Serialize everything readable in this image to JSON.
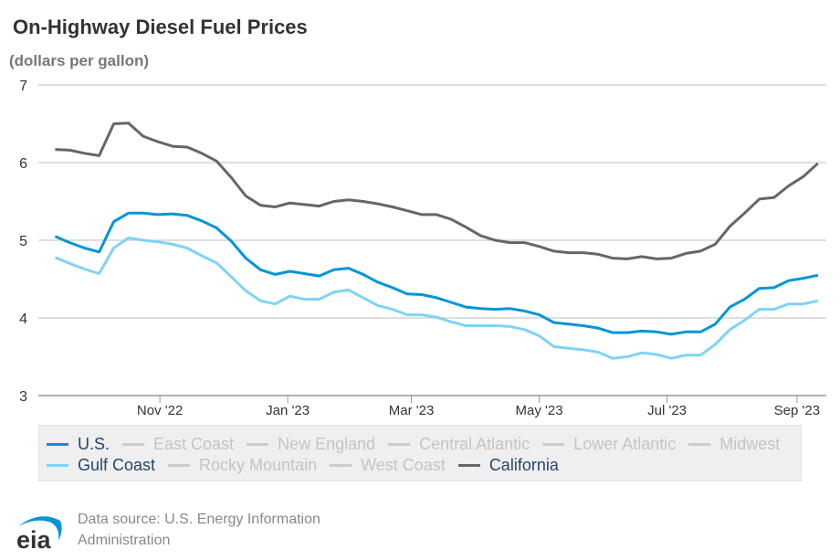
{
  "title": "On-Highway Diesel Fuel Prices",
  "subtitle": "(dollars per gallon)",
  "source": "Data source: U.S. Energy Information Administration",
  "logo_text": "eia",
  "chart_data": {
    "type": "line",
    "title": "On-Highway Diesel Fuel Prices",
    "ylabel": "(dollars per gallon)",
    "ylim": [
      3,
      7
    ],
    "yticks": [
      "3",
      "4",
      "5",
      "6",
      "7"
    ],
    "xlim": [
      "2022-09-04",
      "2023-09-15"
    ],
    "xticks": [
      {
        "date": "2022-11-01",
        "label": "Nov '22"
      },
      {
        "date": "2023-01-01",
        "label": "Jan '23"
      },
      {
        "date": "2023-03-01",
        "label": "Mar '23"
      },
      {
        "date": "2023-05-01",
        "label": "May '23"
      },
      {
        "date": "2023-07-01",
        "label": "Jul '23"
      },
      {
        "date": "2023-09-01",
        "label": "Sep '23"
      }
    ],
    "grid": true,
    "legend_placement": "bottom",
    "x": [
      "2022-09-12",
      "2022-09-19",
      "2022-09-26",
      "2022-10-03",
      "2022-10-10",
      "2022-10-17",
      "2022-10-24",
      "2022-10-31",
      "2022-11-07",
      "2022-11-14",
      "2022-11-21",
      "2022-11-28",
      "2022-12-05",
      "2022-12-12",
      "2022-12-19",
      "2022-12-26",
      "2023-01-02",
      "2023-01-09",
      "2023-01-16",
      "2023-01-23",
      "2023-01-30",
      "2023-02-06",
      "2023-02-13",
      "2023-02-20",
      "2023-02-27",
      "2023-03-06",
      "2023-03-13",
      "2023-03-20",
      "2023-03-27",
      "2023-04-03",
      "2023-04-10",
      "2023-04-17",
      "2023-04-24",
      "2023-05-01",
      "2023-05-08",
      "2023-05-15",
      "2023-05-22",
      "2023-05-29",
      "2023-06-05",
      "2023-06-12",
      "2023-06-19",
      "2023-06-26",
      "2023-07-03",
      "2023-07-10",
      "2023-07-17",
      "2023-07-24",
      "2023-07-31",
      "2023-08-07",
      "2023-08-14",
      "2023-08-21",
      "2023-08-28",
      "2023-09-04",
      "2023-09-11"
    ],
    "series": [
      {
        "name": "California",
        "color": "#666666",
        "values": [
          6.17,
          6.16,
          6.12,
          6.09,
          6.5,
          6.51,
          6.34,
          6.27,
          6.21,
          6.2,
          6.12,
          6.02,
          5.81,
          5.57,
          5.45,
          5.43,
          5.48,
          5.46,
          5.44,
          5.5,
          5.52,
          5.5,
          5.47,
          5.43,
          5.38,
          5.33,
          5.33,
          5.27,
          5.17,
          5.06,
          5.0,
          4.97,
          4.97,
          4.92,
          4.86,
          4.84,
          4.84,
          4.82,
          4.77,
          4.76,
          4.79,
          4.76,
          4.77,
          4.83,
          4.86,
          4.95,
          5.18,
          5.35,
          5.53,
          5.55,
          5.7,
          5.82,
          5.99
        ]
      },
      {
        "name": "Gulf Coast",
        "color": "#7fd3f7",
        "values": [
          4.78,
          4.7,
          4.63,
          4.57,
          4.9,
          5.03,
          5.0,
          4.98,
          4.95,
          4.9,
          4.8,
          4.71,
          4.53,
          4.35,
          4.22,
          4.18,
          4.28,
          4.24,
          4.24,
          4.33,
          4.36,
          4.26,
          4.16,
          4.11,
          4.04,
          4.04,
          4.01,
          3.95,
          3.9,
          3.9,
          3.9,
          3.89,
          3.85,
          3.77,
          3.63,
          3.61,
          3.59,
          3.56,
          3.48,
          3.5,
          3.55,
          3.53,
          3.48,
          3.52,
          3.52,
          3.66,
          3.85,
          3.97,
          4.11,
          4.11,
          4.18,
          4.18,
          4.22
        ]
      },
      {
        "name": "U.S.",
        "color": "#0096d6",
        "values": [
          5.05,
          4.97,
          4.9,
          4.85,
          5.24,
          5.35,
          5.35,
          5.33,
          5.34,
          5.32,
          5.25,
          5.16,
          4.99,
          4.77,
          4.62,
          4.56,
          4.6,
          4.57,
          4.54,
          4.62,
          4.64,
          4.56,
          4.46,
          4.39,
          4.31,
          4.3,
          4.26,
          4.2,
          4.14,
          4.12,
          4.11,
          4.12,
          4.09,
          4.04,
          3.94,
          3.92,
          3.9,
          3.87,
          3.81,
          3.81,
          3.83,
          3.82,
          3.79,
          3.82,
          3.82,
          3.92,
          4.14,
          4.24,
          4.38,
          4.39,
          4.48,
          4.51,
          4.55
        ]
      }
    ]
  },
  "legend": {
    "rows": [
      [
        {
          "label": "U.S.",
          "color": "#0096d6",
          "active": true
        },
        {
          "label": "East Coast",
          "color": "#cccccc",
          "active": false
        },
        {
          "label": "New England",
          "color": "#cccccc",
          "active": false
        },
        {
          "label": "Central Atlantic",
          "color": "#cccccc",
          "active": false
        },
        {
          "label": "Lower Atlantic",
          "color": "#cccccc",
          "active": false
        },
        {
          "label": "Midwest",
          "color": "#cccccc",
          "active": false
        }
      ],
      [
        {
          "label": "Gulf Coast",
          "color": "#7fd3f7",
          "active": true
        },
        {
          "label": "Rocky Mountain",
          "color": "#cccccc",
          "active": false
        },
        {
          "label": "West Coast",
          "color": "#cccccc",
          "active": false
        },
        {
          "label": "California",
          "color": "#666666",
          "active": true
        }
      ]
    ]
  }
}
